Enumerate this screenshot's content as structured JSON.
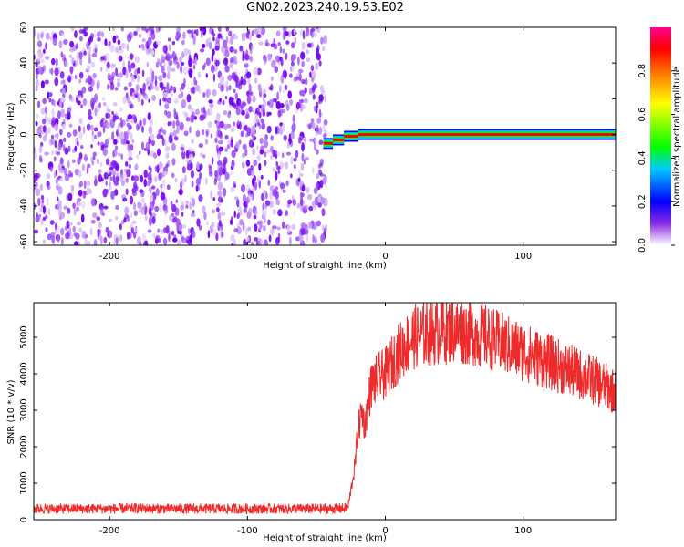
{
  "title": "GN02.2023.240.19.53.E02",
  "chart_data": [
    {
      "type": "heatmap",
      "xlabel": "Height of straight line (km)",
      "ylabel": "Frequency (Hz)",
      "xlim": [
        -255,
        167
      ],
      "ylim": [
        -62,
        60
      ],
      "x_ticks": [
        -200,
        -100,
        0,
        100
      ],
      "x_tick_labels": [
        "-200",
        "-100",
        "0",
        "100"
      ],
      "y_ticks": [
        -60,
        -40,
        -20,
        0,
        20,
        40,
        60
      ],
      "y_tick_labels": [
        "-60",
        "-40",
        "-20",
        "0",
        "20",
        "40",
        "60"
      ],
      "noise_region_x": [
        -255,
        -43
      ],
      "tone_segments": [
        {
          "x_start": -45,
          "x_end": -38,
          "freq": -5
        },
        {
          "x_start": -38,
          "x_end": -30,
          "freq": -3
        },
        {
          "x_start": -30,
          "x_end": -20,
          "freq": -1
        },
        {
          "x_start": -20,
          "x_end": 167,
          "freq": 0
        }
      ],
      "colorbar": {
        "label": "Normalized spectral amplitude",
        "range": [
          0,
          1
        ],
        "ticks": [
          0,
          0.2,
          0.4,
          0.6,
          0.8
        ],
        "tick_labels": [
          "0.0",
          "0.2",
          "0.4",
          "0.6",
          "0.8"
        ],
        "colors": [
          "#ffffff",
          "#8a2be2",
          "#0000ff",
          "#00c8ff",
          "#00ff00",
          "#ffff00",
          "#ff8000",
          "#ff0000",
          "#ff0090"
        ]
      }
    },
    {
      "type": "line",
      "xlabel": "Height of straight line (km)",
      "ylabel": "SNR (10 * v/v)",
      "xlim": [
        -255,
        167
      ],
      "ylim": [
        0,
        5950
      ],
      "x_ticks": [
        -200,
        -100,
        0,
        100
      ],
      "x_tick_labels": [
        "-200",
        "-100",
        "0",
        "100"
      ],
      "y_ticks": [
        0,
        1000,
        2000,
        3000,
        4000,
        5000
      ],
      "y_tick_labels": [
        "0",
        "1000",
        "2000",
        "3000",
        "4000",
        "5000"
      ],
      "color": "#ff0000",
      "series": [
        {
          "x": [
            -255,
            -240,
            -220,
            -200,
            -180,
            -160,
            -140,
            -120,
            -100,
            -80,
            -60,
            -40,
            -30,
            -27,
            -25,
            -22,
            -20,
            -17,
            -15,
            -12,
            -10,
            -5,
            0,
            5,
            10,
            15,
            20,
            30,
            40,
            50,
            60,
            70,
            80,
            90,
            100,
            110,
            120,
            130,
            140,
            150,
            160,
            167
          ],
          "values": [
            300,
            300,
            300,
            300,
            310,
            300,
            300,
            300,
            300,
            300,
            300,
            300,
            310,
            350,
            800,
            1500,
            2400,
            3000,
            2600,
            3300,
            3700,
            3900,
            4000,
            4300,
            4600,
            4800,
            5000,
            5100,
            5150,
            5200,
            5150,
            5050,
            4900,
            4750,
            4600,
            4450,
            4300,
            4150,
            4000,
            3850,
            3650,
            3500
          ]
        }
      ]
    }
  ]
}
